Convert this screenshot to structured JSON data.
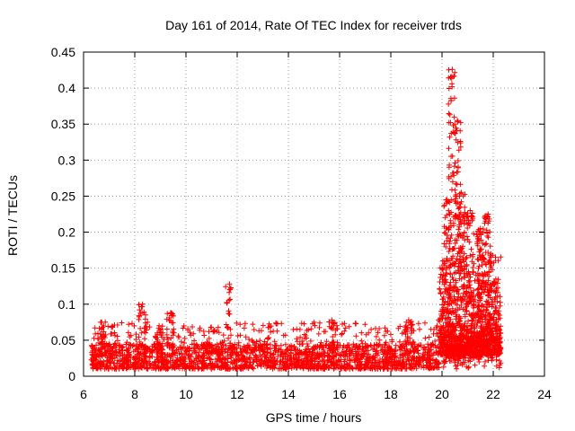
{
  "chart_data": {
    "type": "scatter",
    "title": "Day 161 of 2014, Rate Of TEC Index for receiver trds",
    "xlabel": "GPS time / hours",
    "ylabel": "ROTI / TECUs",
    "xlim": [
      6,
      24
    ],
    "ylim": [
      0,
      0.45
    ],
    "x_ticks": [
      "6",
      "8",
      "10",
      "12",
      "14",
      "16",
      "18",
      "20",
      "22",
      "24"
    ],
    "y_ticks": [
      "0",
      "0.05",
      "0.1",
      "0.15",
      "0.2",
      "0.25",
      "0.3",
      "0.35",
      "0.4",
      "0.45"
    ],
    "grid": true,
    "marker": "+",
    "color": "#ff0000",
    "series": [
      {
        "name": "ROTI",
        "x_range": [
          6.3,
          22.3
        ],
        "baseline_band": [
          0.01,
          0.045
        ],
        "bursts": [
          {
            "x": 6.7,
            "y": 0.075
          },
          {
            "x": 8.3,
            "y": 0.1
          },
          {
            "x": 8.95,
            "y": 0.07
          },
          {
            "x": 9.4,
            "y": 0.088
          },
          {
            "x": 11.7,
            "y": 0.128
          },
          {
            "x": 15.7,
            "y": 0.078
          },
          {
            "x": 18.7,
            "y": 0.078
          },
          {
            "x": 20.0,
            "y": 0.15
          },
          {
            "x": 20.2,
            "y": 0.245
          },
          {
            "x": 20.4,
            "y": 0.426
          },
          {
            "x": 20.6,
            "y": 0.355
          },
          {
            "x": 20.75,
            "y": 0.255
          },
          {
            "x": 21.1,
            "y": 0.23
          },
          {
            "x": 21.5,
            "y": 0.205
          },
          {
            "x": 21.8,
            "y": 0.225
          },
          {
            "x": 22.1,
            "y": 0.135
          }
        ]
      }
    ]
  }
}
